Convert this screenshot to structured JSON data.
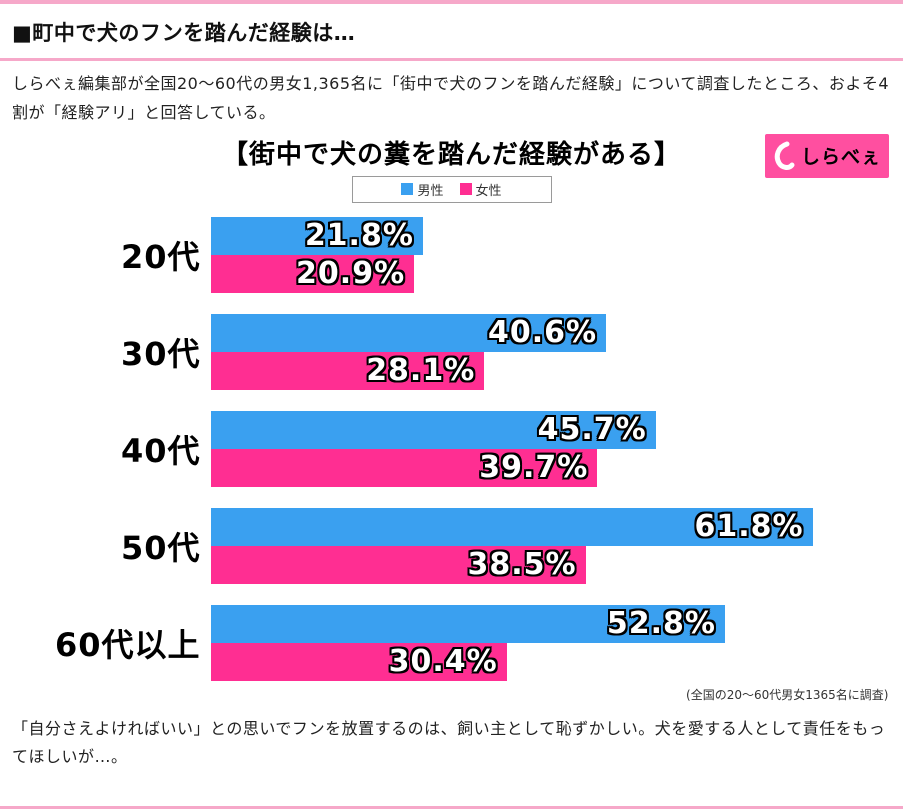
{
  "page": {
    "heading": "■町中で犬のフンを踏んだ経験は…",
    "intro": "しらべぇ編集部が全国20〜60代の男女1,365名に「街中で犬のフンを踏んだ経験」について調査したところ、およそ4割が「経験アリ」と回答している。",
    "outro": "「自分さえよければいい」との思いでフンを放置するのは、飼い主として恥ずかしい。犬を愛する人として責任をもってほしいが…。",
    "accent_color": "#f6a8c9"
  },
  "logo": {
    "text": "しらべぇ",
    "bg_color": "#ff4fa0"
  },
  "chart_data": {
    "type": "bar",
    "orientation": "horizontal",
    "title": "【街中で犬の糞を踏んだ経験がある】",
    "categories": [
      "20代",
      "30代",
      "40代",
      "50代",
      "60代以上"
    ],
    "series": [
      {
        "name": "男性",
        "color": "#3aa0f0",
        "values": [
          21.8,
          40.6,
          45.7,
          61.8,
          52.8
        ]
      },
      {
        "name": "女性",
        "color": "#ff2e92",
        "values": [
          20.9,
          28.1,
          39.7,
          38.5,
          30.4
        ]
      }
    ],
    "value_suffix": "%",
    "xlim": [
      0,
      70
    ],
    "grid": false,
    "legend_position": "top-center",
    "note": "(全国の20〜60代男女1365名に調査)"
  }
}
